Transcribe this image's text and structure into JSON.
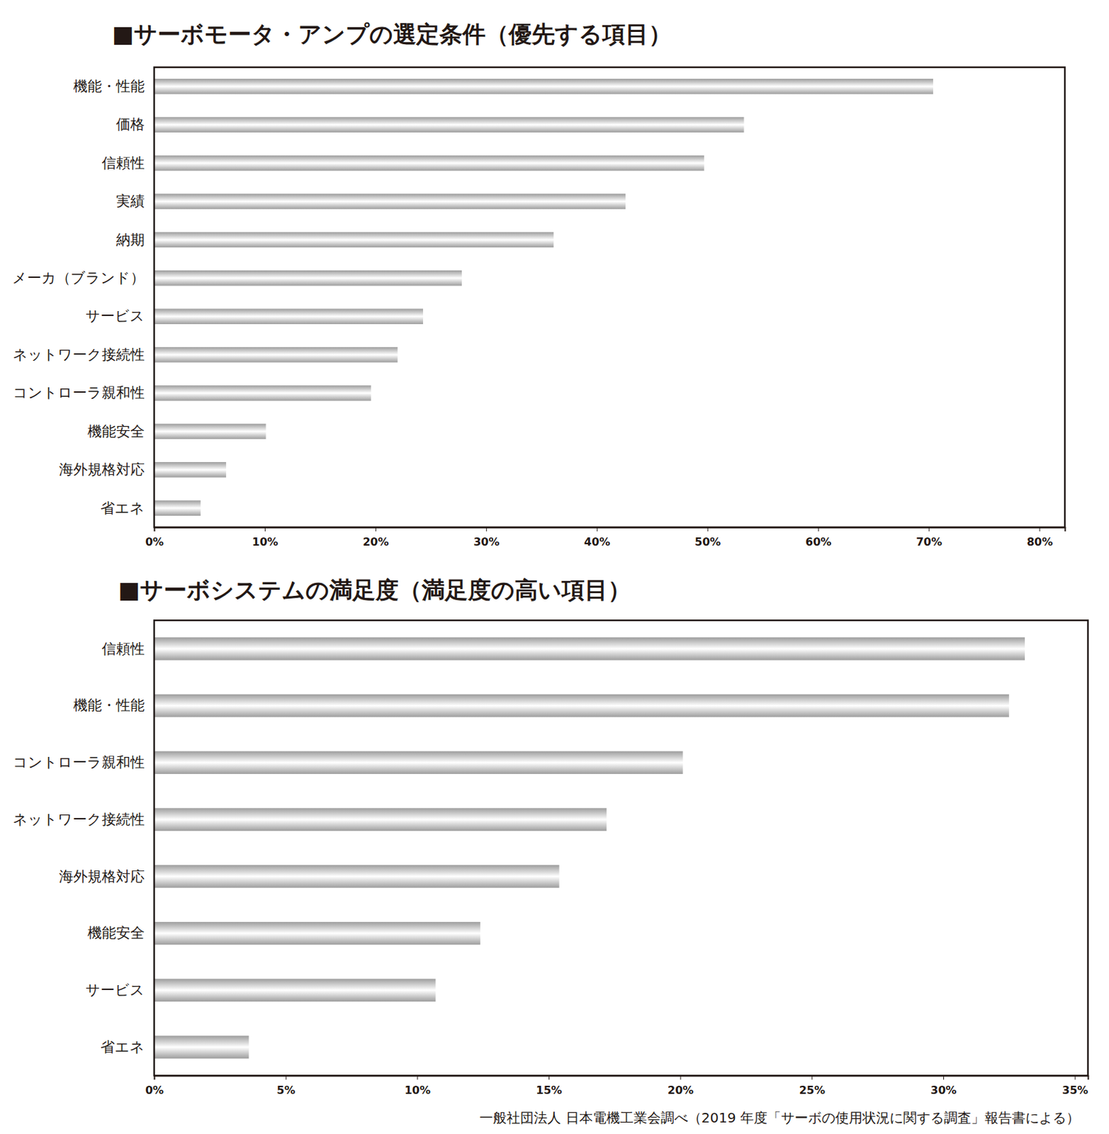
{
  "chart_data": [
    {
      "type": "bar",
      "orientation": "horizontal",
      "title": "■サーボモータ・アンプの選定条件（優先する項目）",
      "categories": [
        "機能・性能",
        "価格",
        "信頼性",
        "実績",
        "納期",
        "メーカ（ブランド）",
        "サービス",
        "ネットワーク接続性",
        "コントローラ親和性",
        "機能安全",
        "海外規格対応",
        "省エネ"
      ],
      "values": [
        70.4,
        53.3,
        49.7,
        42.6,
        36.1,
        27.8,
        24.3,
        22.0,
        19.6,
        10.1,
        6.5,
        4.2
      ],
      "color": "#a9a9a9",
      "xlim": [
        0,
        82.3
      ],
      "xticks": [
        {
          "value": 0,
          "label": "0%"
        },
        {
          "value": 10,
          "label": "10%"
        },
        {
          "value": 20,
          "label": "20%"
        },
        {
          "value": 30,
          "label": "30%"
        },
        {
          "value": 40,
          "label": "40%"
        },
        {
          "value": 50,
          "label": "50%"
        },
        {
          "value": 60,
          "label": "60%"
        },
        {
          "value": 70,
          "label": "70%"
        },
        {
          "value": 80,
          "label": "80%"
        }
      ],
      "grid": false,
      "data_labels": false
    },
    {
      "type": "bar",
      "orientation": "horizontal",
      "title": "■サーボシステムの満足度（満足度の高い項目）",
      "categories": [
        "信頼性",
        "機能・性能",
        "コントローラ親和性",
        "ネットワーク接続性",
        "海外規格対応",
        "機能安全",
        "サービス",
        "省エネ"
      ],
      "values": [
        33.1,
        32.5,
        20.1,
        17.2,
        15.4,
        12.4,
        10.7,
        3.6
      ],
      "color": "#a9a9a9",
      "xlim": [
        0,
        35.5
      ],
      "xticks": [
        {
          "value": 0,
          "label": "0%"
        },
        {
          "value": 5,
          "label": "5%"
        },
        {
          "value": 10,
          "label": "10%"
        },
        {
          "value": 15,
          "label": "15%"
        },
        {
          "value": 20,
          "label": "20%"
        },
        {
          "value": 25,
          "label": "25%"
        },
        {
          "value": 30,
          "label": "30%"
        },
        {
          "value": 35,
          "label": "35%"
        }
      ],
      "grid": false,
      "data_labels": false,
      "annotation": "一般社団法人 日本電機工業会調べ（2019 年度「サーボの使用状況に関する調査」報告書による）"
    }
  ]
}
